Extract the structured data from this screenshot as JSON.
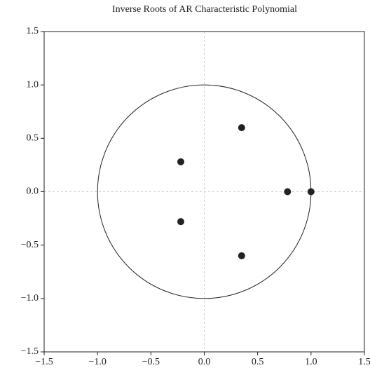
{
  "chart_data": {
    "type": "scatter",
    "title": "Inverse Roots of AR Characteristic Polynomial",
    "x": [
      0.35,
      -0.22,
      0.78,
      1.0,
      -0.22,
      0.35
    ],
    "values": [
      0.6,
      0.28,
      0.0,
      0.0,
      -0.28,
      -0.6
    ],
    "color": "#222222",
    "xlim": [
      -1.5,
      1.5
    ],
    "ylim": [
      -1.5,
      1.5
    ],
    "xticks": [
      {
        "value": -1.5,
        "label": "−1.5"
      },
      {
        "value": -1.0,
        "label": "−1.0"
      },
      {
        "value": -0.5,
        "label": "−0.5"
      },
      {
        "value": 0,
        "label": "0.0"
      },
      0.5,
      {
        "value": 1.0,
        "label": "1.0"
      },
      1.5
    ],
    "yticks": [
      {
        "value": -1.5,
        "label": "−1.5"
      },
      {
        "value": -1.0,
        "label": "−1.0"
      },
      {
        "value": -0.5,
        "label": "−0.5"
      },
      {
        "value": 0,
        "label": "0.0"
      },
      0.5,
      {
        "value": 1.0,
        "label": "1.0"
      },
      1.5
    ],
    "zero_lines": true,
    "reference_circle_radius": 1
  }
}
